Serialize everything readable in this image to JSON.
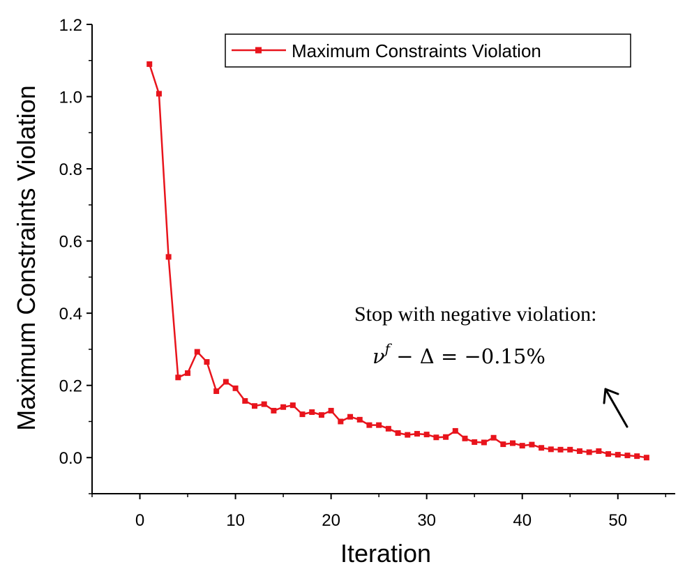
{
  "chart_data": {
    "type": "line",
    "title": "",
    "xlabel": "Iteration",
    "ylabel": "Maximum Constraints Violation",
    "xlim": [
      -5,
      56
    ],
    "ylim": [
      -0.1,
      1.2
    ],
    "xticks": [
      0,
      10,
      20,
      30,
      40,
      50
    ],
    "xtick_labels": [
      "0",
      "10",
      "20",
      "30",
      "40",
      "50"
    ],
    "yticks": [
      0.0,
      0.2,
      0.4,
      0.6,
      0.8,
      1.0,
      1.2
    ],
    "ytick_labels": [
      "0.0",
      "0.2",
      "0.4",
      "0.6",
      "0.8",
      "1.0",
      "1.2"
    ],
    "grid": false,
    "legend_position": "top-right",
    "series": [
      {
        "name": "Maximum Constraints Violation",
        "color": "#e8141c",
        "marker": "square",
        "x": [
          1,
          2,
          3,
          4,
          5,
          6,
          7,
          8,
          9,
          10,
          11,
          12,
          13,
          14,
          15,
          16,
          17,
          18,
          19,
          20,
          21,
          22,
          23,
          24,
          25,
          26,
          27,
          28,
          29,
          30,
          31,
          32,
          33,
          34,
          35,
          36,
          37,
          38,
          39,
          40,
          41,
          42,
          43,
          44,
          45,
          46,
          47,
          48,
          49,
          50,
          51,
          52,
          53
        ],
        "values": [
          1.09,
          1.008,
          0.556,
          0.222,
          0.234,
          0.293,
          0.265,
          0.184,
          0.21,
          0.192,
          0.157,
          0.143,
          0.148,
          0.13,
          0.14,
          0.145,
          0.12,
          0.126,
          0.118,
          0.13,
          0.1,
          0.113,
          0.105,
          0.09,
          0.09,
          0.08,
          0.068,
          0.063,
          0.066,
          0.064,
          0.056,
          0.057,
          0.074,
          0.053,
          0.043,
          0.042,
          0.055,
          0.037,
          0.04,
          0.033,
          0.036,
          0.027,
          0.023,
          0.022,
          0.022,
          0.018,
          0.015,
          0.018,
          0.01,
          0.008,
          0.006,
          0.004,
          0
        ]
      }
    ],
    "annotations": {
      "line1": "Stop with negative violation:",
      "formula_nu": "ν",
      "formula_sup": "f",
      "formula_rest": " − Δ = −0.15%",
      "arrow_color": "#000000"
    }
  }
}
